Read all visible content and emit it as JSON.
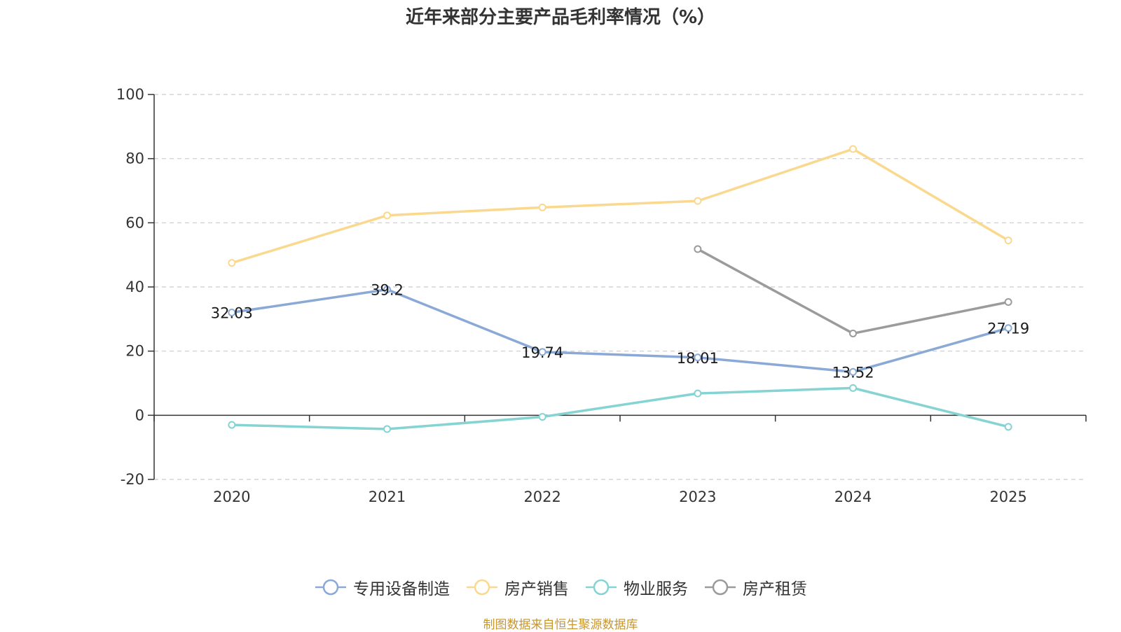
{
  "chart_data": {
    "type": "line",
    "title": "近年来部分主要产品毛利率情况（%）",
    "categories": [
      "2020",
      "2021",
      "2022",
      "2023",
      "2024",
      "2025"
    ],
    "ylim": [
      -20,
      100
    ],
    "yticks": [
      -20,
      0,
      20,
      40,
      60,
      80,
      100
    ],
    "ytick_labels": [
      "-20",
      "0",
      "20",
      "40",
      "60",
      "80",
      "100"
    ],
    "grid": true,
    "legend_position": "bottom",
    "series": [
      {
        "name": "专用设备制造",
        "color": "#8aa9d6",
        "values": [
          32.03,
          39.2,
          19.74,
          18.01,
          13.52,
          27.19
        ],
        "labels": [
          "32.03",
          "39.2",
          "19.74",
          "18.01",
          "13.52",
          "27.19"
        ]
      },
      {
        "name": "房产销售",
        "color": "#fad98f",
        "values": [
          47.5,
          62.3,
          64.8,
          66.8,
          83.0,
          54.5
        ]
      },
      {
        "name": "物业服务",
        "color": "#85d3d3",
        "values": [
          -3,
          -4.3,
          -0.5,
          6.8,
          8.5,
          -3.6
        ]
      },
      {
        "name": "房产租赁",
        "color": "#9b9b9b",
        "values": [
          null,
          null,
          null,
          51.8,
          25.5,
          35.3
        ]
      }
    ],
    "source": "制图数据来自恒生聚源数据库"
  }
}
